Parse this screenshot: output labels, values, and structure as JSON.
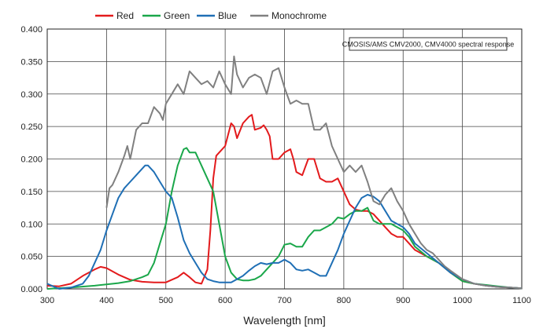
{
  "chart_data": {
    "type": "line",
    "title": "",
    "xlabel": "Wavelength [nm]",
    "ylabel": "",
    "xlim": [
      300,
      1100
    ],
    "ylim": [
      0,
      0.4
    ],
    "x_ticks": [
      "300",
      "400",
      "500",
      "600",
      "700",
      "800",
      "900",
      "1000",
      "1100"
    ],
    "y_ticks": [
      "0.000",
      "0.050",
      "0.100",
      "0.150",
      "0.200",
      "0.250",
      "0.300",
      "0.350",
      "0.400"
    ],
    "grid": true,
    "legend_position": "top",
    "annotation": "CMOSIS/AMS CMV2000, CMV4000 spectral response",
    "series": [
      {
        "name": "Red",
        "color": "#e31a1c",
        "x": [
          300,
          320,
          340,
          360,
          380,
          390,
          400,
          420,
          440,
          460,
          480,
          500,
          520,
          530,
          540,
          550,
          560,
          570,
          575,
          580,
          585,
          590,
          600,
          610,
          615,
          620,
          630,
          640,
          645,
          650,
          660,
          665,
          670,
          675,
          680,
          690,
          700,
          710,
          715,
          720,
          730,
          740,
          750,
          760,
          770,
          780,
          790,
          800,
          810,
          820,
          830,
          840,
          850,
          860,
          870,
          880,
          890,
          900,
          910,
          920,
          940,
          960,
          980,
          1000,
          1020,
          1040,
          1060,
          1080,
          1100
        ],
        "y": [
          0.005,
          0.004,
          0.008,
          0.02,
          0.03,
          0.034,
          0.032,
          0.022,
          0.014,
          0.011,
          0.01,
          0.01,
          0.018,
          0.025,
          0.018,
          0.01,
          0.008,
          0.03,
          0.09,
          0.17,
          0.205,
          0.21,
          0.22,
          0.255,
          0.25,
          0.232,
          0.255,
          0.265,
          0.268,
          0.245,
          0.248,
          0.252,
          0.245,
          0.235,
          0.2,
          0.2,
          0.21,
          0.215,
          0.2,
          0.18,
          0.175,
          0.2,
          0.2,
          0.17,
          0.165,
          0.165,
          0.17,
          0.15,
          0.13,
          0.122,
          0.12,
          0.12,
          0.115,
          0.105,
          0.095,
          0.085,
          0.08,
          0.08,
          0.07,
          0.06,
          0.05,
          0.04,
          0.025,
          0.012,
          0.008,
          0.005,
          0.003,
          0.002,
          0.001
        ]
      },
      {
        "name": "Green",
        "color": "#1aa74a",
        "x": [
          300,
          340,
          380,
          400,
          420,
          440,
          460,
          470,
          480,
          490,
          500,
          510,
          520,
          530,
          535,
          540,
          550,
          560,
          570,
          580,
          590,
          600,
          610,
          620,
          630,
          640,
          650,
          660,
          670,
          680,
          690,
          700,
          710,
          720,
          730,
          740,
          750,
          760,
          770,
          780,
          790,
          800,
          810,
          820,
          830,
          840,
          850,
          860,
          870,
          880,
          890,
          900,
          910,
          920,
          940,
          960,
          980,
          1000,
          1020,
          1040,
          1060,
          1080,
          1100
        ],
        "y": [
          0.0,
          0.002,
          0.005,
          0.007,
          0.009,
          0.012,
          0.018,
          0.022,
          0.04,
          0.07,
          0.1,
          0.15,
          0.19,
          0.215,
          0.217,
          0.21,
          0.21,
          0.19,
          0.17,
          0.15,
          0.1,
          0.05,
          0.025,
          0.015,
          0.013,
          0.013,
          0.015,
          0.02,
          0.03,
          0.04,
          0.05,
          0.068,
          0.07,
          0.065,
          0.065,
          0.08,
          0.09,
          0.09,
          0.095,
          0.1,
          0.11,
          0.108,
          0.115,
          0.12,
          0.12,
          0.125,
          0.105,
          0.1,
          0.1,
          0.1,
          0.095,
          0.09,
          0.08,
          0.065,
          0.05,
          0.04,
          0.025,
          0.012,
          0.008,
          0.006,
          0.004,
          0.002,
          0.001
        ]
      },
      {
        "name": "Blue",
        "color": "#1f6fb5",
        "x": [
          300,
          320,
          340,
          360,
          370,
          380,
          390,
          400,
          410,
          420,
          430,
          440,
          450,
          460,
          465,
          470,
          480,
          490,
          500,
          510,
          520,
          530,
          540,
          550,
          560,
          570,
          580,
          590,
          600,
          610,
          620,
          630,
          640,
          650,
          660,
          670,
          680,
          690,
          700,
          710,
          720,
          730,
          740,
          750,
          760,
          770,
          780,
          790,
          800,
          810,
          820,
          830,
          840,
          850,
          860,
          870,
          880,
          890,
          900,
          910,
          920,
          940,
          960,
          980,
          1000,
          1020,
          1040,
          1060,
          1080,
          1100
        ],
        "y": [
          0.008,
          0.0,
          0.002,
          0.008,
          0.02,
          0.04,
          0.06,
          0.09,
          0.115,
          0.14,
          0.155,
          0.165,
          0.175,
          0.185,
          0.19,
          0.19,
          0.18,
          0.165,
          0.15,
          0.14,
          0.11,
          0.075,
          0.055,
          0.04,
          0.025,
          0.015,
          0.012,
          0.01,
          0.01,
          0.01,
          0.015,
          0.02,
          0.028,
          0.035,
          0.04,
          0.038,
          0.04,
          0.04,
          0.045,
          0.04,
          0.03,
          0.028,
          0.03,
          0.025,
          0.02,
          0.02,
          0.04,
          0.06,
          0.085,
          0.105,
          0.125,
          0.14,
          0.145,
          0.142,
          0.135,
          0.12,
          0.105,
          0.1,
          0.095,
          0.085,
          0.07,
          0.055,
          0.04,
          0.025,
          0.015,
          0.008,
          0.005,
          0.003,
          0.002,
          0.001
        ]
      },
      {
        "name": "Monochrome",
        "color": "#808080",
        "x": [
          400,
          405,
          410,
          420,
          430,
          435,
          440,
          450,
          460,
          470,
          480,
          490,
          495,
          500,
          510,
          520,
          530,
          540,
          550,
          560,
          570,
          580,
          590,
          600,
          610,
          615,
          620,
          630,
          640,
          650,
          660,
          670,
          680,
          690,
          700,
          710,
          720,
          730,
          740,
          750,
          760,
          770,
          780,
          790,
          800,
          810,
          820,
          830,
          840,
          850,
          860,
          870,
          880,
          890,
          900,
          910,
          920,
          930,
          940,
          950,
          960,
          970,
          980,
          1000,
          1020,
          1040,
          1060,
          1080,
          1100
        ],
        "y": [
          0.125,
          0.155,
          0.16,
          0.18,
          0.205,
          0.22,
          0.2,
          0.245,
          0.255,
          0.255,
          0.28,
          0.27,
          0.26,
          0.285,
          0.3,
          0.315,
          0.3,
          0.335,
          0.325,
          0.315,
          0.32,
          0.31,
          0.335,
          0.315,
          0.3,
          0.358,
          0.33,
          0.31,
          0.325,
          0.33,
          0.325,
          0.3,
          0.335,
          0.34,
          0.31,
          0.285,
          0.29,
          0.285,
          0.285,
          0.245,
          0.245,
          0.255,
          0.22,
          0.2,
          0.18,
          0.19,
          0.18,
          0.19,
          0.165,
          0.135,
          0.13,
          0.145,
          0.155,
          0.135,
          0.12,
          0.1,
          0.085,
          0.07,
          0.06,
          0.055,
          0.045,
          0.035,
          0.028,
          0.015,
          0.008,
          0.005,
          0.003,
          0.002,
          0.001
        ]
      }
    ]
  }
}
